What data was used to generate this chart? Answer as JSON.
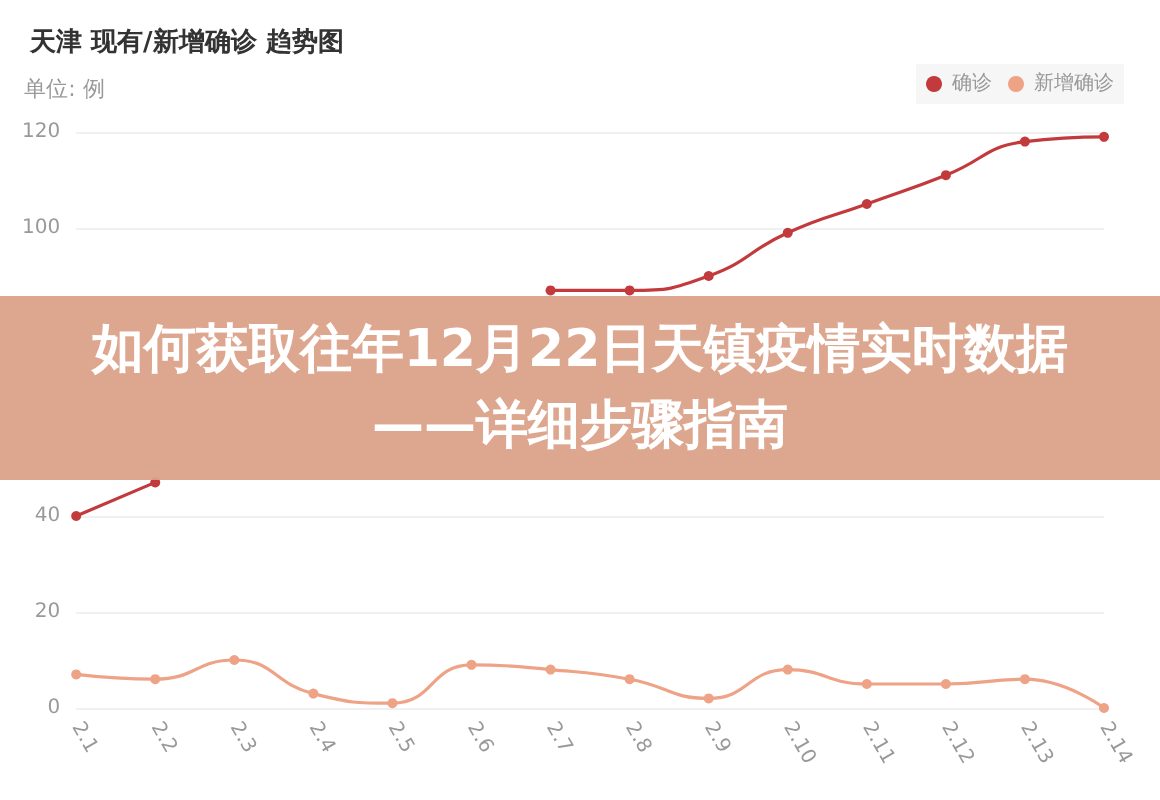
{
  "chart_data": {
    "type": "line",
    "title": "天津 现有/新增确诊 趋势图",
    "ylabel": "单位: 例",
    "categories": [
      "2.1",
      "2.2",
      "2.3",
      "2.4",
      "2.5",
      "2.6",
      "2.7",
      "2.8",
      "2.9",
      "2.10",
      "2.11",
      "2.12",
      "2.13",
      "2.14"
    ],
    "series": [
      {
        "name": "确诊",
        "color": "#c23a3c",
        "values": [
          40,
          47,
          null,
          null,
          null,
          null,
          87,
          87,
          90,
          99,
          105,
          111,
          118,
          119
        ]
      },
      {
        "name": "新增确诊",
        "color": "#eea286",
        "values": [
          7,
          6,
          10,
          3,
          1,
          9,
          8,
          6,
          2,
          8,
          5,
          5,
          6,
          0
        ]
      }
    ],
    "ylim": [
      0,
      120
    ],
    "yticks": [
      0,
      20,
      40,
      100,
      120
    ],
    "grid": "y",
    "legend": "top right",
    "marker": "circle",
    "line_style": "solid",
    "annotations": [
      "如何获取往年12月22日天镇疫情实时数据——详细步骤指南"
    ]
  }
}
